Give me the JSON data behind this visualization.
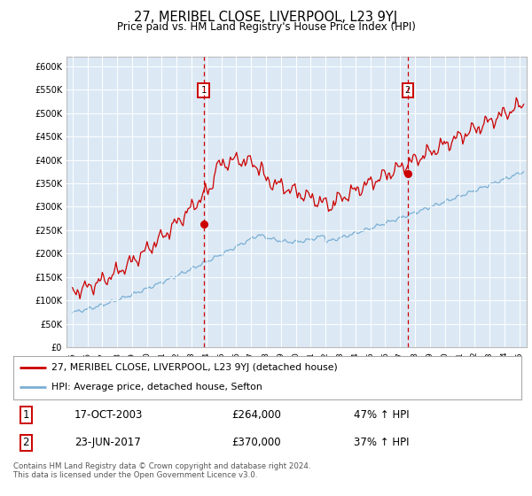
{
  "title": "27, MERIBEL CLOSE, LIVERPOOL, L23 9YJ",
  "subtitle": "Price paid vs. HM Land Registry's House Price Index (HPI)",
  "legend_label_red": "27, MERIBEL CLOSE, LIVERPOOL, L23 9YJ (detached house)",
  "legend_label_blue": "HPI: Average price, detached house, Sefton",
  "annotation1_date": "17-OCT-2003",
  "annotation1_price": "£264,000",
  "annotation1_hpi": "47% ↑ HPI",
  "annotation2_date": "23-JUN-2017",
  "annotation2_price": "£370,000",
  "annotation2_hpi": "37% ↑ HPI",
  "footer": "Contains HM Land Registry data © Crown copyright and database right 2024.\nThis data is licensed under the Open Government Licence v3.0.",
  "red_color": "#cc0000",
  "blue_color": "#7bafd4",
  "sale1_year": 2003.8,
  "sale1_price": 264000,
  "sale2_year": 2017.5,
  "sale2_price": 370000,
  "ylim_min": 0,
  "ylim_max": 620000,
  "xmin": 1994.6,
  "xmax": 2025.5,
  "plot_bg_color": "#dce9f5",
  "grid_color": "#ffffff",
  "yticks": [
    0,
    50000,
    100000,
    150000,
    200000,
    250000,
    300000,
    350000,
    400000,
    450000,
    500000,
    550000,
    600000
  ]
}
